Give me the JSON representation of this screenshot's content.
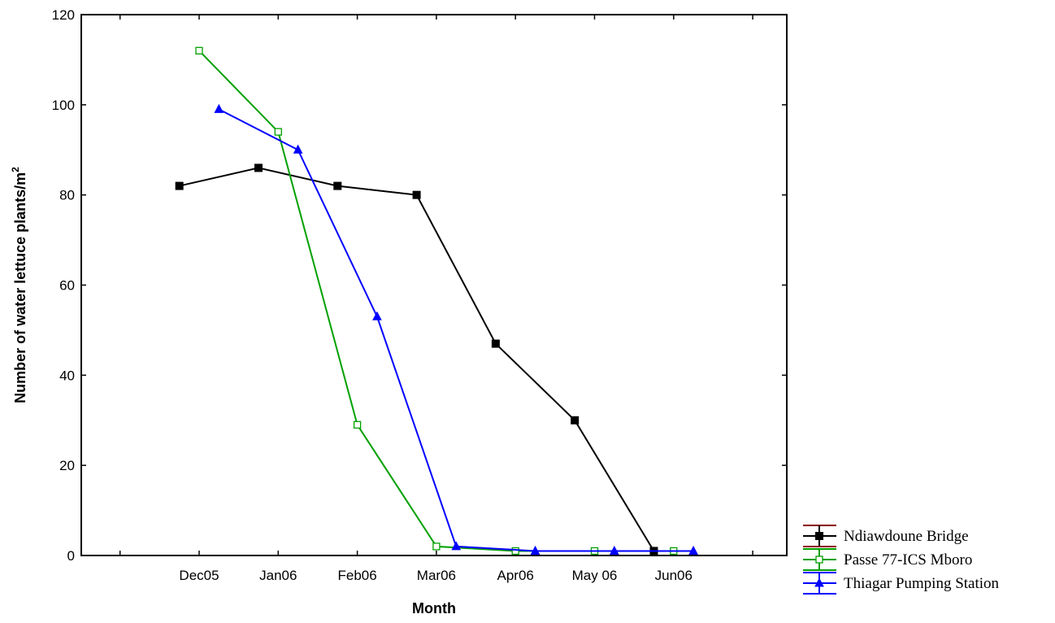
{
  "chart_data": {
    "type": "line",
    "title": "",
    "xlabel": "Month",
    "ylabel": "Number of water lettuce plants/m",
    "ylabel_superscript": "2",
    "ylim": [
      0,
      120
    ],
    "yticks": [
      "0",
      "20",
      "40",
      "60",
      "80",
      "100",
      "120"
    ],
    "categories": [
      "Dec05",
      "Jan06",
      "Feb06",
      "Mar06",
      "Apr06",
      "May 06",
      "Jun06"
    ],
    "grid": false,
    "legend_position": "bottom-right",
    "series": [
      {
        "name": "Ndiawdoune Bridge",
        "color": "#000000",
        "marker": "filled-square",
        "x": [
          -0.25,
          0.75,
          1.75,
          2.75,
          3.75,
          4.75,
          5.75
        ],
        "values": [
          82,
          86,
          82,
          80,
          47,
          30,
          1
        ]
      },
      {
        "name": "Passe 77-ICS Mboro",
        "color": "#00a000",
        "marker": "open-square",
        "x": [
          0.0,
          1.0,
          2.0,
          3.0,
          4.0,
          5.0,
          6.0
        ],
        "values": [
          112,
          94,
          29,
          2,
          1,
          1,
          1
        ]
      },
      {
        "name": "Thiagar Pumping Station",
        "color": "#0000ff",
        "marker": "filled-triangle",
        "x": [
          0.25,
          1.25,
          2.25,
          3.25,
          4.25,
          5.25,
          6.25
        ],
        "values": [
          99,
          90,
          53,
          2,
          1,
          1,
          1
        ]
      }
    ]
  }
}
